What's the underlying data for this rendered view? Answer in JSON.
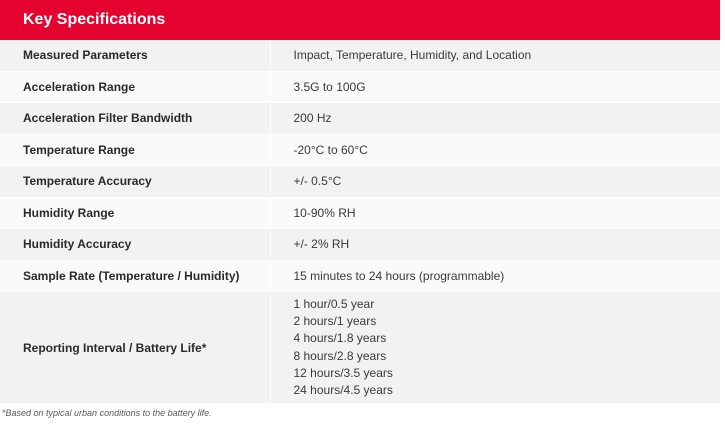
{
  "header": {
    "title": "Key Specifications"
  },
  "rows": [
    {
      "label": "Measured Parameters",
      "value": "Impact, Temperature, Humidity, and Location"
    },
    {
      "label": "Acceleration Range",
      "value": "3.5G to 100G"
    },
    {
      "label": "Acceleration Filter Bandwidth",
      "value": "200 Hz"
    },
    {
      "label": "Temperature Range",
      "value": "-20°C to 60°C"
    },
    {
      "label": "Temperature Accuracy",
      "value": "+/- 0.5°C"
    },
    {
      "label": "Humidity Range",
      "value": "10-90% RH"
    },
    {
      "label": "Humidity Accuracy",
      "value": "+/- 2% RH"
    },
    {
      "label": "Sample Rate (Temperature / Humidity)",
      "value": "15 minutes to 24 hours (programmable)"
    }
  ],
  "battery": {
    "label": "Reporting Interval / Battery Life*",
    "values": [
      "1 hour/0.5 year",
      "2 hours/1 years",
      "4 hours/1.8 years",
      "8 hours/2.8 years",
      "12 hours/3.5 years",
      "24 hours/4.5 years"
    ]
  },
  "footnote": "*Based on typical urban conditions to the battery life.",
  "colors": {
    "header_bg": "#e4032e",
    "row_odd": "#f2f2f2",
    "row_even": "#fafafa"
  }
}
